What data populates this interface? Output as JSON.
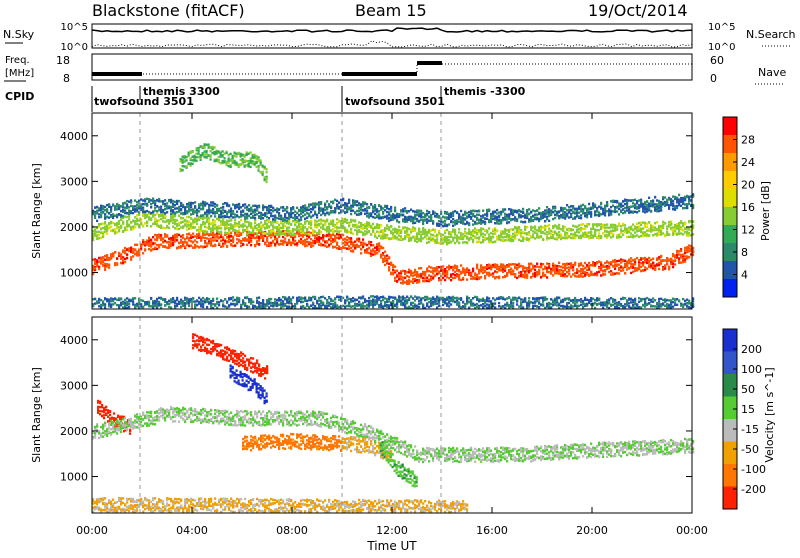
{
  "header": {
    "station": "Blackstone (fitACF)",
    "beam": "Beam 15",
    "date": "19/Oct/2014"
  },
  "status_panel": {
    "nsky_label": "N.Sky",
    "nsearch_label": "N.Search",
    "freq_label_1": "Freq.",
    "freq_label_2": "[MHz]",
    "nave_label": "Nave",
    "cpid_label": "CPID",
    "noise_ticks_left": [
      "10^5",
      "10^0"
    ],
    "noise_ticks_right": [
      "10^5",
      "10^0"
    ],
    "freq_ticks": [
      "18",
      "8"
    ],
    "nave_ticks": [
      "60",
      "0"
    ],
    "cpid_segments": [
      {
        "label": "twofsound 3501",
        "start": 0.0
      },
      {
        "label": "themis 3300",
        "start": 2.0
      },
      {
        "label": "twofsound 3501",
        "start": 10.0
      },
      {
        "label": "themis -3300",
        "start": 14.0
      }
    ]
  },
  "power_colorbar": {
    "title": "Power [dB]",
    "ticks": [
      "28",
      "24",
      "20",
      "16",
      "12",
      "8",
      "4"
    ],
    "colors": [
      "#ff0000",
      "#ff5500",
      "#ff9900",
      "#ffcc00",
      "#dddd00",
      "#88cc33",
      "#33aa55",
      "#2b8a6a",
      "#2255aa",
      "#0022ee"
    ]
  },
  "velocity_colorbar": {
    "title": "Velocity [m s^-1]",
    "ticks": [
      "200",
      "100",
      "50",
      "15",
      "-15",
      "-50",
      "-100",
      "-200"
    ],
    "colors": [
      "#1a2fd0",
      "#3355cc",
      "#2a8a4a",
      "#55cc33",
      "#bbbbbb",
      "#f0a000",
      "#ff7700",
      "#ff2200"
    ]
  },
  "x_axis": {
    "title": "Time UT",
    "ticks": [
      "00:00",
      "04:00",
      "08:00",
      "12:00",
      "16:00",
      "20:00",
      "00:00"
    ]
  },
  "chart_data": [
    {
      "type": "heatmap",
      "name": "power",
      "ylabel": "Slant Range [km]",
      "yticks": [
        "1000",
        "2000",
        "3000",
        "4000"
      ],
      "ylim": [
        200,
        4500
      ],
      "xlim": [
        0,
        24
      ],
      "clim": [
        0,
        30
      ],
      "bands": [
        {
          "t": [
            0,
            1.5,
            2.5,
            5,
            8,
            10,
            11.5,
            12.2,
            13.5,
            16,
            20,
            23,
            24
          ],
          "range": [
            1150,
            1450,
            1700,
            1750,
            1780,
            1700,
            1500,
            900,
            1000,
            1050,
            1100,
            1250,
            1500
          ],
          "value": 26
        },
        {
          "t": [
            0,
            2,
            5,
            8,
            10,
            12,
            14,
            18,
            24
          ],
          "range": [
            1900,
            2200,
            2050,
            2000,
            2050,
            1900,
            1800,
            1900,
            2000
          ],
          "value": 14
        },
        {
          "t": [
            0,
            2,
            5,
            8,
            10,
            12,
            14,
            18,
            24
          ],
          "range": [
            2300,
            2500,
            2400,
            2300,
            2500,
            2300,
            2200,
            2300,
            2600
          ],
          "value": 6
        },
        {
          "t": [
            3.5,
            4.5,
            5.5,
            6.5,
            7
          ],
          "range": [
            3400,
            3700,
            3500,
            3500,
            3100
          ],
          "value": 12
        },
        {
          "t": [
            0,
            12,
            18,
            24
          ],
          "range": [
            300,
            350,
            320,
            300
          ],
          "value": 6
        }
      ]
    },
    {
      "type": "heatmap",
      "name": "velocity",
      "ylabel": "Slant Range [km]",
      "yticks": [
        "1000",
        "2000",
        "3000",
        "4000"
      ],
      "ylim": [
        200,
        4500
      ],
      "xlim": [
        0,
        24
      ],
      "clim": [
        -200,
        200
      ],
      "bands": [
        {
          "t": [
            0.2,
            0.8,
            1.5
          ],
          "range": [
            2550,
            2300,
            2100
          ],
          "value": -220
        },
        {
          "t": [
            4,
            5.5,
            7
          ],
          "range": [
            4000,
            3700,
            3300
          ],
          "value": -220
        },
        {
          "t": [
            5.5,
            6.5,
            7
          ],
          "range": [
            3300,
            3000,
            2700
          ],
          "value": 180
        },
        {
          "t": [
            6,
            8,
            10
          ],
          "range": [
            1750,
            1800,
            1750
          ],
          "value": -120
        },
        {
          "t": [
            10,
            11,
            12
          ],
          "range": [
            1750,
            1700,
            1500
          ],
          "value": -60
        },
        {
          "t": [
            0,
            3,
            6,
            9,
            11,
            13,
            17,
            20,
            24
          ],
          "range": [
            2000,
            2400,
            2300,
            2300,
            2000,
            1500,
            1500,
            1600,
            1700
          ],
          "value": 0
        },
        {
          "t": [
            11.5,
            12.2,
            13
          ],
          "range": [
            1700,
            1200,
            900
          ],
          "value": 40
        },
        {
          "t": [
            0,
            6,
            12,
            15
          ],
          "range": [
            400,
            380,
            350,
            330
          ],
          "value": -55
        }
      ]
    }
  ]
}
